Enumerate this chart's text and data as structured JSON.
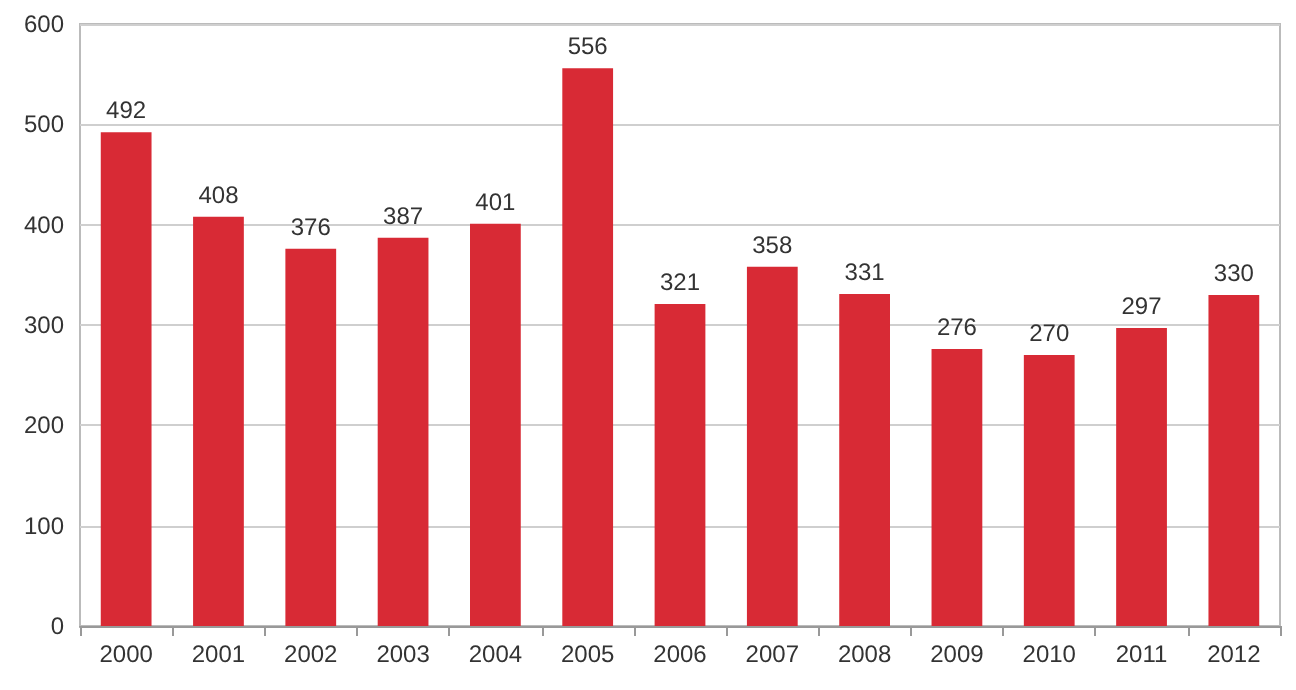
{
  "chart_data": {
    "type": "bar",
    "categories": [
      "2000",
      "2001",
      "2002",
      "2003",
      "2004",
      "2005",
      "2006",
      "2007",
      "2008",
      "2009",
      "2010",
      "2011",
      "2012"
    ],
    "values": [
      492,
      408,
      376,
      387,
      401,
      556,
      321,
      358,
      331,
      276,
      270,
      297,
      330
    ],
    "color": "#d82a35",
    "ylim": [
      0,
      600
    ],
    "yticks": [
      0,
      100,
      200,
      300,
      400,
      500,
      600
    ],
    "grid": "y",
    "data_labels": true
  }
}
